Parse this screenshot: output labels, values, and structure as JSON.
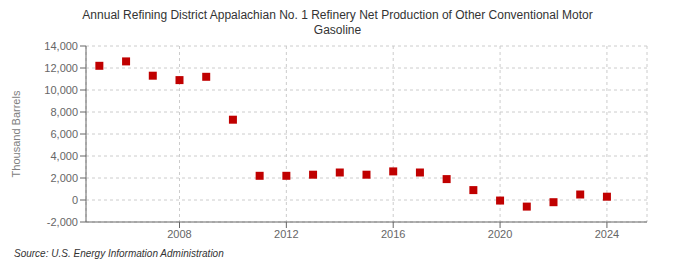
{
  "chart_data": {
    "type": "scatter",
    "title": "Annual Refining District Appalachian No. 1 Refinery Net Production of Other Conventional Motor\nGasoline",
    "ylabel": "Thousand Barrels",
    "source": "Source: U.S. Energy Information Administration",
    "x": [
      2005,
      2006,
      2007,
      2008,
      2009,
      2010,
      2011,
      2012,
      2013,
      2014,
      2015,
      2016,
      2017,
      2018,
      2019,
      2020,
      2021,
      2022,
      2023,
      2024
    ],
    "values": [
      12200,
      12600,
      11300,
      10900,
      11200,
      7300,
      2200,
      2200,
      2300,
      2500,
      2300,
      2600,
      2500,
      1900,
      900,
      -50,
      -600,
      -200,
      500,
      300
    ],
    "color": "#c00000",
    "marker": "square",
    "xlim": [
      2004.5,
      2025.5
    ],
    "xticks": [
      2008,
      2012,
      2016,
      2020,
      2024
    ],
    "ylim": [
      -2000,
      14000
    ],
    "yticks": [
      {
        "value": -2000,
        "label": "-2,000"
      },
      0,
      {
        "value": 2000,
        "label": "2,000"
      },
      {
        "value": 4000,
        "label": "4,000"
      },
      {
        "value": 6000,
        "label": "6,000"
      },
      {
        "value": 8000,
        "label": "8,000"
      },
      {
        "value": 10000,
        "label": "10,000"
      },
      {
        "value": 12000,
        "label": "12,000"
      },
      {
        "value": 14000,
        "label": "14,000"
      }
    ],
    "grid": true
  }
}
